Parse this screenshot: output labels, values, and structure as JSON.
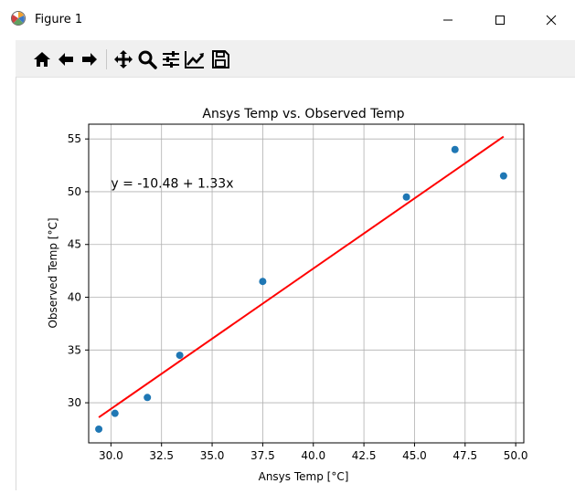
{
  "window": {
    "title": "Figure 1",
    "minimize_icon": "minimize-icon",
    "maximize_icon": "maximize-icon",
    "close_icon": "close-icon"
  },
  "toolbar": {
    "icons": [
      "home-icon",
      "back-arrow-icon",
      "forward-arrow-icon",
      "pan-icon",
      "zoom-icon",
      "subplots-config-icon",
      "edit-axis-icon",
      "save-icon"
    ]
  },
  "colors": {
    "points": "#1f77b4",
    "fit_line": "#ff0000",
    "grid": "#b0b0b0"
  },
  "chart_data": {
    "type": "scatter",
    "title": "Ansys Temp vs. Observed Temp",
    "xlabel": "Ansys Temp [°C]",
    "ylabel": "Observed Temp [°C]",
    "xlim": [
      28.9,
      50.4
    ],
    "ylim": [
      26.2,
      56.4
    ],
    "xticks": [
      30.0,
      32.5,
      35.0,
      37.5,
      40.0,
      42.5,
      45.0,
      47.5,
      50.0
    ],
    "xtick_labels": [
      "30.0",
      "32.5",
      "35.0",
      "37.5",
      "40.0",
      "42.5",
      "45.0",
      "47.5",
      "50.0"
    ],
    "yticks": [
      30,
      35,
      40,
      45,
      50,
      55
    ],
    "ytick_labels": [
      "30",
      "35",
      "40",
      "45",
      "50",
      "55"
    ],
    "grid": true,
    "points": [
      {
        "x": 29.4,
        "y": 27.5
      },
      {
        "x": 30.2,
        "y": 29.0
      },
      {
        "x": 31.8,
        "y": 30.5
      },
      {
        "x": 33.4,
        "y": 34.5
      },
      {
        "x": 37.5,
        "y": 41.5
      },
      {
        "x": 44.6,
        "y": 49.5
      },
      {
        "x": 47.0,
        "y": 54.0
      },
      {
        "x": 49.4,
        "y": 51.5
      }
    ],
    "fit_line": {
      "intercept": -10.48,
      "slope": 1.33,
      "x_range": [
        29.4,
        49.4
      ]
    },
    "annotation": {
      "text": "y = -10.48 + 1.33x",
      "x": 30.0,
      "y": 50.4
    }
  }
}
